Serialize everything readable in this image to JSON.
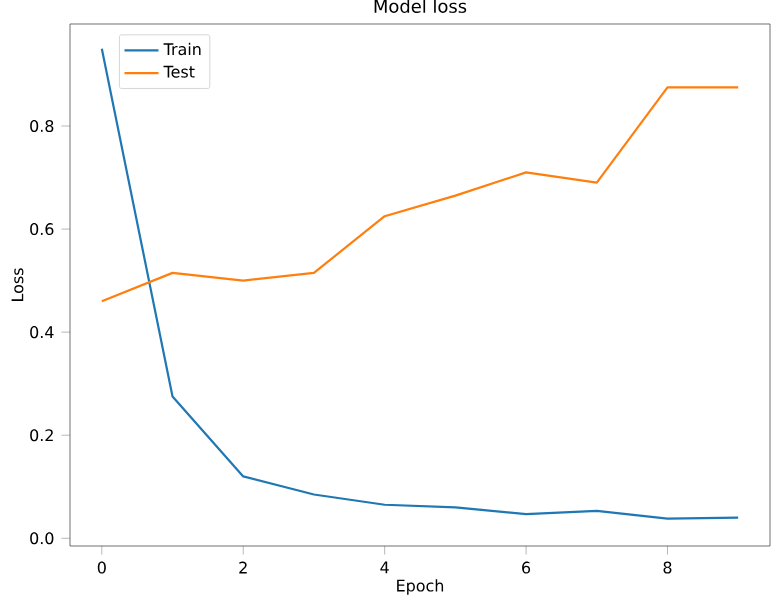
{
  "chart_data": {
    "type": "line",
    "title": "Model loss",
    "xlabel": "Epoch",
    "ylabel": "Loss",
    "x": [
      0,
      1,
      2,
      3,
      4,
      5,
      6,
      7,
      8,
      9
    ],
    "series": [
      {
        "name": "Train",
        "color": "#1f77b4",
        "values": [
          0.95,
          0.275,
          0.12,
          0.085,
          0.065,
          0.06,
          0.047,
          0.053,
          0.038,
          0.04
        ]
      },
      {
        "name": "Test",
        "color": "#ff7f0e",
        "values": [
          0.46,
          0.515,
          0.5,
          0.515,
          0.625,
          0.665,
          0.71,
          0.69,
          0.875,
          0.875
        ]
      }
    ],
    "xlim": [
      -0.45,
      9.45
    ],
    "ylim": [
      -0.015,
      0.998
    ],
    "xticks": [
      0,
      2,
      4,
      6,
      8
    ],
    "yticks": [
      {
        "value": 0,
        "label": "0.0"
      },
      0.2,
      0.4,
      0.6,
      0.8
    ],
    "legend": "top left",
    "grid": false
  }
}
